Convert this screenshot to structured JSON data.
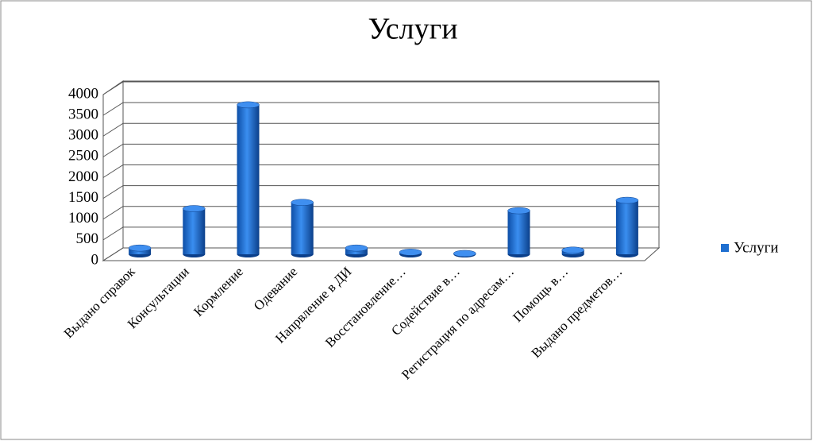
{
  "chart_data": {
    "type": "bar3d",
    "title": "Услуги",
    "categories": [
      "Выдано справок",
      "Консультации",
      "Кормление",
      "Одевание",
      "Напрвление в ДИ",
      "Восстановление…",
      "Содействие в…",
      "Регистрация по адресам…",
      "Помощь в…",
      "Выдано предметов…"
    ],
    "series": [
      {
        "name": "Услуги",
        "color": "#1f6fd0",
        "values": [
          150,
          1100,
          3600,
          1250,
          150,
          50,
          20,
          1050,
          100,
          1300
        ]
      }
    ],
    "ylim": [
      0,
      4000
    ],
    "yticks": [
      0,
      500,
      1000,
      1500,
      2000,
      2500,
      3000,
      3500,
      4000
    ],
    "grid": true,
    "legend": "right"
  }
}
